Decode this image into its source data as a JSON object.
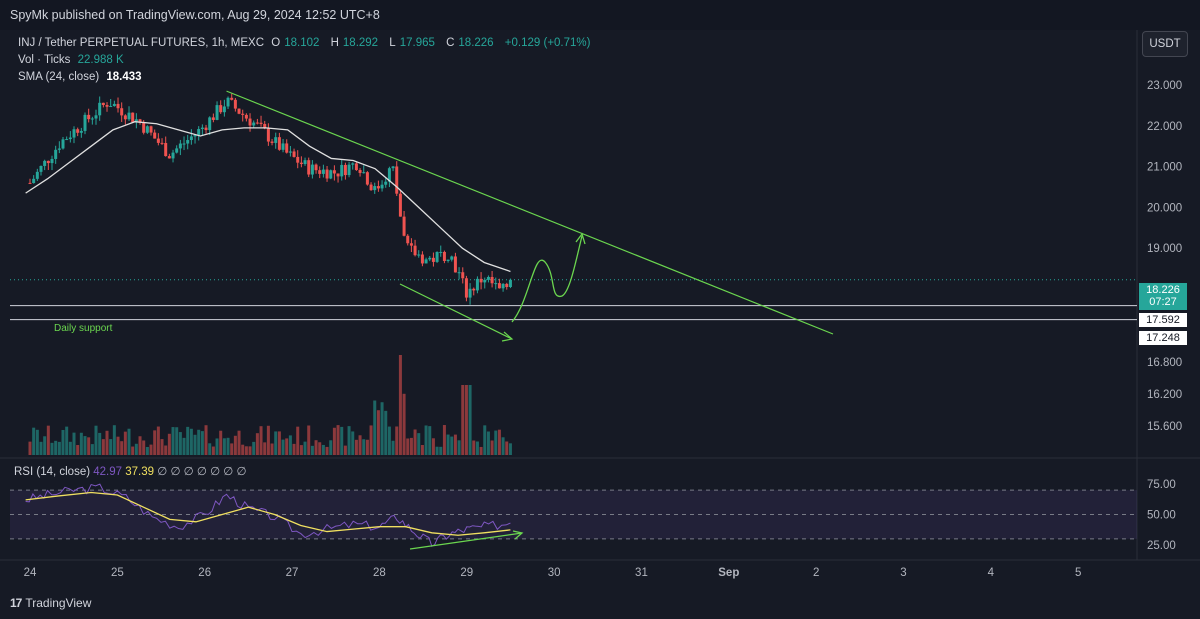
{
  "header": {
    "published_by": "SpyMk published on TradingView.com, Aug 29, 2024 12:52 UTC+8"
  },
  "legend": {
    "symbol": "INJ / Tether PERPETUAL FUTURES, 1h, MEXC",
    "open_label": "O",
    "open": "18.102",
    "high_label": "H",
    "high": "18.292",
    "low_label": "L",
    "low": "17.965",
    "close_label": "C",
    "close": "18.226",
    "change": "+0.129 (+0.71%)",
    "vol_label": "Vol · Ticks",
    "vol_value": "22.988 K",
    "sma_label": "SMA (24, close)",
    "sma_value": "18.433"
  },
  "rsi_legend": {
    "label": "RSI (14, close)",
    "value1": "42.97",
    "value2": "37.39",
    "extra": "∅ ∅ ∅ ∅ ∅ ∅ ∅"
  },
  "currency_button": "USDT",
  "price_tags": {
    "current": "18.226",
    "countdown": "07:27",
    "level1": "17.592",
    "level2": "17.248"
  },
  "annotation": {
    "daily_support": "Daily support"
  },
  "footer": {
    "brand": "TradingView",
    "logo": "17"
  },
  "colors": {
    "background": "#161a25",
    "up": "#26a69a",
    "down": "#ef5350",
    "sma": "#e0e0e0",
    "trendline": "#6bd64f",
    "rsi": "#7e57c2",
    "rsi_ma": "#f0e060"
  },
  "chart_data": [
    {
      "type": "candlestick",
      "title": "INJ / Tether PERPETUAL FUTURES, 1h, MEXC",
      "x_ticks": [
        "24",
        "25",
        "26",
        "27",
        "28",
        "29",
        "30",
        "31",
        "Sep",
        "2",
        "3",
        "4",
        "5"
      ],
      "y_ticks": [
        "23.000",
        "22.000",
        "21.000",
        "20.000",
        "19.000"
      ],
      "ylim": [
        17.2,
        23.3
      ],
      "series": [
        {
          "name": "SMA (24, close)",
          "type": "line",
          "x": [
            23.95,
            24.2,
            24.45,
            24.7,
            24.95,
            25.2,
            25.45,
            25.7,
            25.95,
            26.2,
            26.45,
            26.7,
            26.95,
            27.2,
            27.45,
            27.7,
            27.95,
            28.2,
            28.45,
            28.7,
            28.95,
            29.2,
            29.5
          ],
          "y": [
            20.35,
            20.7,
            21.1,
            21.5,
            21.9,
            22.1,
            22.05,
            21.9,
            21.75,
            21.9,
            21.95,
            21.95,
            21.9,
            21.5,
            21.2,
            21.15,
            20.95,
            20.5,
            20.0,
            19.5,
            19.0,
            18.65,
            18.43
          ]
        }
      ],
      "key_points": [
        {
          "x": 24.0,
          "y": 20.6
        },
        {
          "x": 24.35,
          "y": 21.6
        },
        {
          "x": 24.9,
          "y": 22.6
        },
        {
          "x": 25.25,
          "y": 22.1
        },
        {
          "x": 25.6,
          "y": 21.3
        },
        {
          "x": 25.95,
          "y": 21.9
        },
        {
          "x": 26.25,
          "y": 22.6
        },
        {
          "x": 26.6,
          "y": 22.0
        },
        {
          "x": 26.95,
          "y": 21.3
        },
        {
          "x": 27.2,
          "y": 20.95
        },
        {
          "x": 27.5,
          "y": 20.85
        },
        {
          "x": 27.75,
          "y": 21.1
        },
        {
          "x": 27.95,
          "y": 20.4
        },
        {
          "x": 28.15,
          "y": 21.0
        },
        {
          "x": 28.3,
          "y": 19.0
        },
        {
          "x": 28.55,
          "y": 18.7
        },
        {
          "x": 28.8,
          "y": 18.9
        },
        {
          "x": 29.0,
          "y": 17.9
        },
        {
          "x": 29.2,
          "y": 18.3
        },
        {
          "x": 29.4,
          "y": 17.9
        },
        {
          "x": 29.5,
          "y": 18.23
        }
      ],
      "horizontal_levels": [
        17.592,
        17.248
      ],
      "current_price": 18.226
    },
    {
      "type": "bar",
      "title": "Vol · Ticks",
      "y_ticks": [
        "16.800",
        "16.200",
        "15.600"
      ],
      "note": "volume bars from Aug 24 to Aug 29, peak near Aug 28"
    },
    {
      "type": "line",
      "title": "RSI (14, close)",
      "y_ticks": [
        "75.00",
        "50.00",
        "25.00"
      ],
      "ylim": [
        20,
        80
      ],
      "bands": [
        70,
        50,
        30
      ],
      "series": [
        {
          "name": "RSI",
          "x": [
            23.95,
            24.2,
            24.5,
            24.8,
            25.1,
            25.4,
            25.7,
            26.0,
            26.25,
            26.5,
            26.8,
            27.1,
            27.4,
            27.7,
            28.0,
            28.2,
            28.4,
            28.6,
            28.8,
            29.0,
            29.2,
            29.5
          ],
          "y": [
            62,
            66,
            70,
            72,
            64,
            48,
            40,
            50,
            66,
            55,
            48,
            34,
            38,
            42,
            40,
            48,
            36,
            26,
            34,
            38,
            40,
            42.97
          ]
        },
        {
          "name": "RSI-based MA",
          "x": [
            23.95,
            24.3,
            24.7,
            25.0,
            25.3,
            25.6,
            25.9,
            26.2,
            26.5,
            26.8,
            27.1,
            27.4,
            27.7,
            28.0,
            28.3,
            28.6,
            28.9,
            29.2,
            29.5
          ],
          "y": [
            62,
            65,
            68,
            66,
            56,
            46,
            44,
            50,
            56,
            50,
            41,
            36,
            38,
            40,
            40,
            35,
            33,
            35,
            37.39
          ]
        }
      ]
    }
  ]
}
